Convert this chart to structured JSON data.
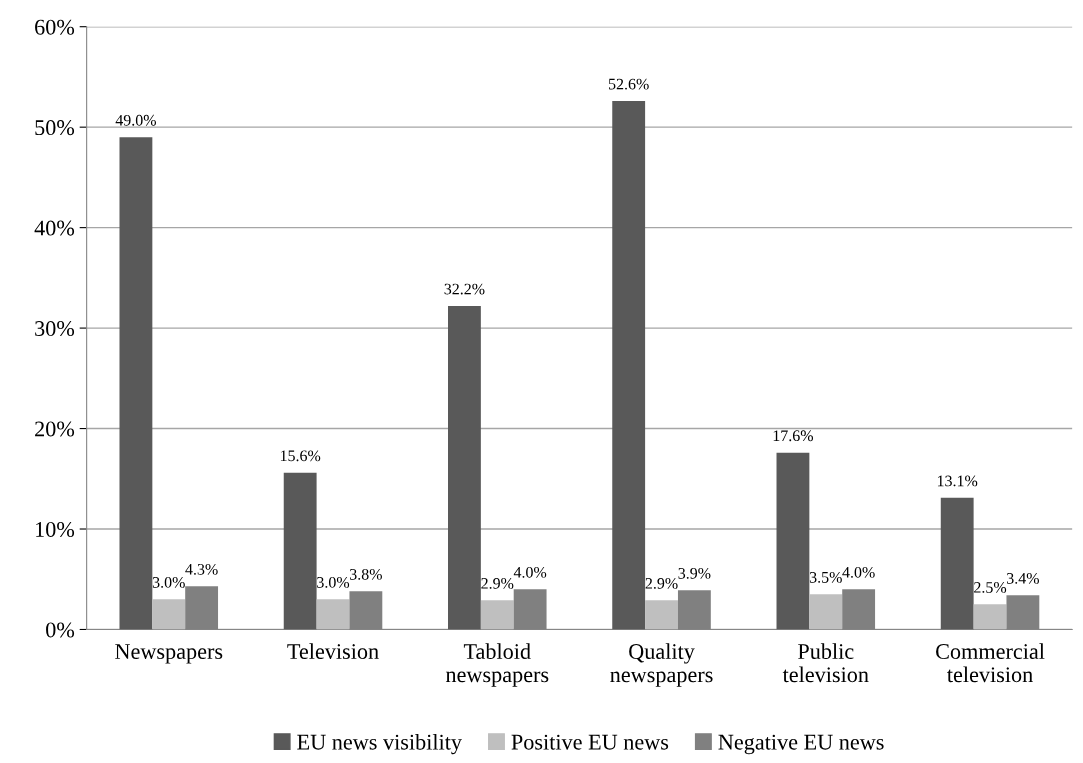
{
  "chart_data": {
    "type": "bar",
    "categories": [
      "Newspapers",
      "Television",
      "Tabloid\nnewspapers",
      "Quality\nnewspapers",
      "Public\ntelevision",
      "Commercial\ntelevision"
    ],
    "series": [
      {
        "name": "EU news visibility",
        "color": "#595959",
        "values": [
          49.0,
          15.6,
          32.2,
          52.6,
          17.6,
          13.1
        ],
        "value_labels": [
          "49.0%",
          "15.6%",
          "32.2%",
          "52.6%",
          "17.6%",
          "13.1%"
        ]
      },
      {
        "name": "Positive EU news",
        "color": "#bfbfbf",
        "values": [
          3.0,
          3.0,
          2.9,
          2.9,
          3.5,
          2.5
        ],
        "value_labels": [
          "3.0%",
          "3.0%",
          "2.9%",
          "2.9%",
          "3.5%",
          "2.5%"
        ]
      },
      {
        "name": "Negative EU news",
        "color": "#808080",
        "values": [
          4.3,
          3.8,
          4.0,
          3.9,
          4.0,
          3.4
        ],
        "value_labels": [
          "4.3%",
          "3.8%",
          "4.0%",
          "3.9%",
          "4.0%",
          "3.4%"
        ]
      }
    ],
    "ylim": [
      0,
      60
    ],
    "yticks": [
      {
        "value": 0,
        "label": "0%"
      },
      {
        "value": 10,
        "label": "10%"
      },
      {
        "value": 20,
        "label": "20%"
      },
      {
        "value": 30,
        "label": "30%"
      },
      {
        "value": 40,
        "label": "40%"
      },
      {
        "value": 50,
        "label": "50%"
      },
      {
        "value": 60,
        "label": "60%"
      }
    ],
    "grid": "y",
    "legend": "bottom"
  }
}
